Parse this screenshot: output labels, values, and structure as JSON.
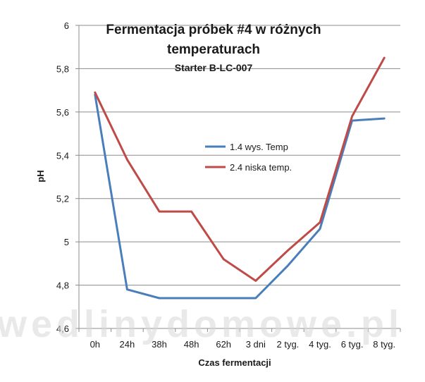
{
  "chart_data": {
    "type": "line",
    "title_line1": "Fermentacja próbek #4 w różnych",
    "title_line2": "temperaturach",
    "subtitle": "Starter B-LC-007",
    "xlabel": "Czas fermentacji",
    "ylabel": "pH",
    "categories": [
      "0h",
      "24h",
      "38h",
      "48h",
      "62h",
      "3 dni",
      "2 tyg.",
      "4 tyg.",
      "6 tyg.",
      "8 tyg."
    ],
    "ylim": [
      4.6,
      6.0
    ],
    "ytick_step": 0.2,
    "ytick_labels": [
      "4,6",
      "4,8",
      "5",
      "5,2",
      "5,4",
      "5,6",
      "5,8",
      "6"
    ],
    "grid": true,
    "legend_position": "center",
    "series": [
      {
        "name": "1.4 wys. Temp",
        "color": "#4a7ebb",
        "values": [
          5.68,
          4.78,
          4.74,
          4.74,
          4.74,
          4.74,
          4.89,
          5.06,
          5.56,
          5.57
        ]
      },
      {
        "name": "2.4 niska temp.",
        "color": "#be4b48",
        "values": [
          5.69,
          5.38,
          5.14,
          5.14,
          4.92,
          4.82,
          4.96,
          5.09,
          5.58,
          5.85
        ]
      }
    ]
  },
  "watermark": "wedlinydomowe.pl"
}
